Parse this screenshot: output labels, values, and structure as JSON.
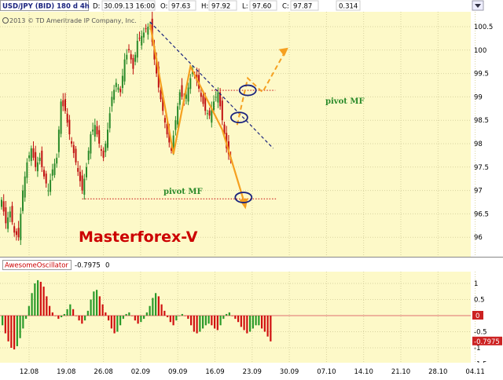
{
  "header": {
    "symbol": "USD/JPY (BID) 180 d 4h",
    "date_label": "D:",
    "date_value": "30.09.13 16:00",
    "open_label": "O:",
    "open_value": "97.63",
    "high_label": "H:",
    "high_value": "97.92",
    "low_label": "L:",
    "low_value": "97.60",
    "close_label": "C:",
    "close_value": "97.87",
    "range_value": "0.314"
  },
  "copyright": "2013 © TD Ameritrade IP Company, Inc.",
  "watermark": "Masterforex-V",
  "annotations": {
    "pivot_upper": "pivot MF",
    "pivot_lower": "pivot MF"
  },
  "oscillator": {
    "name": "AwesomeOscillator",
    "value": "-0.7975",
    "extra": "0"
  },
  "colors": {
    "background": "#fdf9c8",
    "bull": "#2a8a2a",
    "bear": "#c01010",
    "pattern": "#f5a020",
    "trendline": "#1a237e",
    "pivot_line": "#cc2222",
    "pivot_text": "#2a8a2a",
    "watermark": "#cc0000",
    "ellipse": "#1a237e",
    "osc_pos": "#2a9a2a",
    "osc_neg": "#d01010",
    "zero_line": "#e07070"
  },
  "chart_data": [
    {
      "type": "candlestick",
      "title": "USD/JPY (BID) 180 d 4h",
      "y_ticks": [
        "100.5",
        "100",
        "99.5",
        "99",
        "98.5",
        "98",
        "97.5",
        "97",
        "96.5",
        "96"
      ],
      "ylim": [
        95.7,
        100.75
      ],
      "x_ticks": [
        "12.08",
        "19.08",
        "26.08",
        "02.09",
        "09.09",
        "16.09",
        "23.09",
        "30.09",
        "07.10",
        "14.10",
        "21.10",
        "28.10",
        "04.11"
      ],
      "close_path": [
        [
          0,
          96.8
        ],
        [
          2,
          96.3
        ],
        [
          4,
          96.55
        ],
        [
          6,
          96.1
        ],
        [
          8,
          96.0
        ],
        [
          10,
          97.0
        ],
        [
          12,
          97.6
        ],
        [
          14,
          97.9
        ],
        [
          16,
          97.5
        ],
        [
          18,
          97.7
        ],
        [
          20,
          97.3
        ],
        [
          22,
          97.0
        ],
        [
          24,
          97.45
        ],
        [
          26,
          97.7
        ],
        [
          28,
          98.9
        ],
        [
          30,
          98.7
        ],
        [
          32,
          98.2
        ],
        [
          34,
          97.8
        ],
        [
          36,
          97.4
        ],
        [
          38,
          97.0
        ],
        [
          40,
          97.5
        ],
        [
          42,
          98.2
        ],
        [
          44,
          98.4
        ],
        [
          46,
          98.0
        ],
        [
          48,
          97.7
        ],
        [
          50,
          98.3
        ],
        [
          52,
          99.0
        ],
        [
          54,
          99.3
        ],
        [
          56,
          99.1
        ],
        [
          58,
          99.8
        ],
        [
          60,
          100.0
        ],
        [
          62,
          99.6
        ],
        [
          64,
          100.2
        ],
        [
          66,
          100.3
        ],
        [
          68,
          100.45
        ],
        [
          70,
          100.55
        ],
        [
          72,
          99.8
        ],
        [
          74,
          99.2
        ],
        [
          76,
          98.7
        ],
        [
          78,
          98.2
        ],
        [
          80,
          97.85
        ],
        [
          82,
          98.5
        ],
        [
          84,
          99.1
        ],
        [
          86,
          98.9
        ],
        [
          88,
          99.2
        ],
        [
          90,
          99.6
        ],
        [
          92,
          99.35
        ],
        [
          94,
          99.0
        ],
        [
          96,
          98.7
        ],
        [
          98,
          98.6
        ],
        [
          100,
          98.9
        ],
        [
          102,
          99.1
        ],
        [
          104,
          98.5
        ],
        [
          106,
          97.9
        ],
        [
          108,
          97.65
        ]
      ],
      "series": [
        {
          "name": "pattern",
          "points": [
            [
              70,
              100.55
            ],
            [
              81,
              97.78
            ],
            [
              89,
              99.65
            ],
            [
              104,
              98.3
            ]
          ]
        },
        {
          "name": "pattern-forecast",
          "points": [
            [
              104,
              98.3
            ],
            [
              115,
              96.65
            ]
          ]
        },
        {
          "name": "projected",
          "points": [
            [
              111,
              98.4
            ],
            [
              116,
              99.4
            ],
            [
              123,
              99.1
            ],
            [
              134,
              100.0
            ]
          ]
        }
      ],
      "trendline": [
        [
          70,
          100.6
        ],
        [
          128,
          97.9
        ]
      ],
      "pivot_levels": [
        {
          "label": "pivot MF",
          "y": 96.82,
          "x_from": 38,
          "x_to": 130
        },
        {
          "label": "pivot MF",
          "y": 99.14,
          "x_from": 99,
          "x_to": 129
        }
      ],
      "highlights": [
        [
          116,
          99.14
        ],
        [
          112,
          98.56
        ],
        [
          114,
          96.85
        ]
      ]
    },
    {
      "type": "bar",
      "title": "AwesomeOscillator",
      "y_ticks": [
        "1",
        "0.5",
        "0",
        "-0.5",
        "-1",
        "-1.5"
      ],
      "zero_label": "0",
      "last_value": "-0.7975",
      "ylim": [
        -1.55,
        1.5
      ],
      "values": [
        -0.3,
        -0.55,
        -0.8,
        -1.0,
        -1.05,
        -0.95,
        -0.7,
        -0.4,
        -0.1,
        0.3,
        0.7,
        1.0,
        1.1,
        1.05,
        0.9,
        0.6,
        0.3,
        0.1,
        0.0,
        -0.1,
        -0.05,
        0.05,
        0.2,
        0.35,
        0.2,
        0.0,
        -0.15,
        -0.25,
        -0.15,
        0.15,
        0.5,
        0.75,
        0.8,
        0.6,
        0.35,
        0.1,
        -0.15,
        -0.4,
        -0.55,
        -0.5,
        -0.3,
        -0.1,
        0.05,
        0.1,
        0.0,
        -0.15,
        -0.25,
        -0.2,
        -0.1,
        0.1,
        0.3,
        0.55,
        0.7,
        0.6,
        0.35,
        0.15,
        -0.05,
        -0.2,
        -0.3,
        -0.15,
        0.0,
        0.05,
        0.0,
        -0.1,
        -0.3,
        -0.5,
        -0.55,
        -0.5,
        -0.4,
        -0.3,
        -0.25,
        -0.3,
        -0.4,
        -0.45,
        -0.3,
        -0.1,
        0.05,
        0.1,
        0.0,
        -0.1,
        -0.2,
        -0.35,
        -0.45,
        -0.55,
        -0.5,
        -0.4,
        -0.3,
        -0.3,
        -0.4,
        -0.5,
        -0.65,
        -0.8
      ]
    }
  ]
}
